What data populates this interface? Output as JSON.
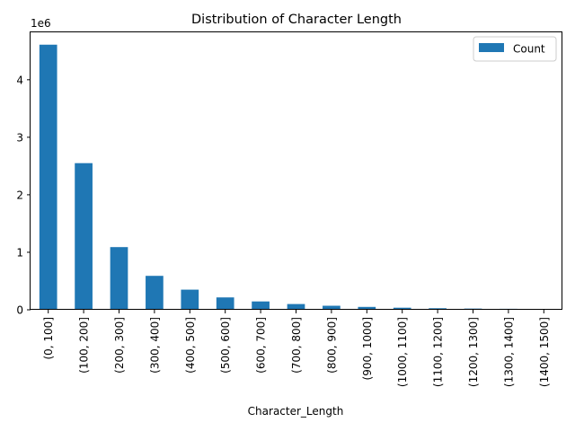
{
  "chart_data": {
    "type": "bar",
    "title": "Distribution of Character Length",
    "xlabel": "Character_Length",
    "ylabel": "",
    "y_multiplier_label": "1e6",
    "categories": [
      "(0, 100]",
      "(100, 200]",
      "(200, 300]",
      "(300, 400]",
      "(400, 500]",
      "(500, 600]",
      "(600, 700]",
      "(700, 800]",
      "(800, 900]",
      "(900, 1000]",
      "(1000, 1100]",
      "(1100, 1200]",
      "(1200, 1300]",
      "(1300, 1400]",
      "(1400, 1500]"
    ],
    "series": [
      {
        "name": "Count",
        "color": "#1f77b4",
        "values": [
          4610000,
          2550000,
          1090000,
          590000,
          350000,
          215000,
          145000,
          100000,
          70000,
          50000,
          36000,
          27000,
          21000,
          17000,
          13000
        ]
      }
    ],
    "ylim": [
      0,
      4840500
    ],
    "yticks": [
      0,
      1000000,
      2000000,
      3000000,
      4000000
    ],
    "ytick_labels": [
      "0",
      "1",
      "2",
      "3",
      "4"
    ],
    "legend_position": "top-right",
    "grid": false
  }
}
